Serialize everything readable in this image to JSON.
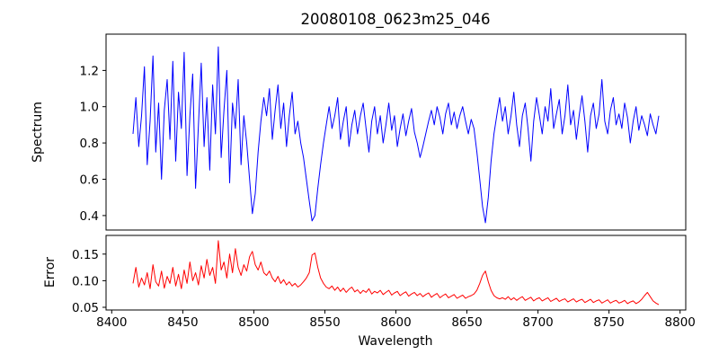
{
  "chart_data": {
    "type": "line",
    "title": "20080108_0623m25_046",
    "xlabel": "Wavelength",
    "xlim": [
      8396,
      8804
    ],
    "xticks": [
      8400,
      8450,
      8500,
      8550,
      8600,
      8650,
      8700,
      8750,
      8800
    ],
    "x_start": 8415,
    "x_step": 2,
    "grid": false,
    "legend": "none",
    "subplots": [
      {
        "name": "spectrum",
        "ylabel": "Spectrum",
        "ylim": [
          0.32,
          1.4
        ],
        "yticks": [
          0.4,
          0.6,
          0.8,
          1.0,
          1.2
        ],
        "ytick_labels": [
          "0.4",
          "0.6",
          "0.8",
          "1.0",
          "1.2"
        ],
        "line_color": "#0000ff",
        "y": [
          0.85,
          1.05,
          0.78,
          0.95,
          1.22,
          0.68,
          0.92,
          1.28,
          0.75,
          1.02,
          0.6,
          0.98,
          1.15,
          0.82,
          1.25,
          0.7,
          1.08,
          0.88,
          1.3,
          0.62,
          0.95,
          1.18,
          0.55,
          0.9,
          1.24,
          0.78,
          1.05,
          0.65,
          1.12,
          0.85,
          1.33,
          0.72,
          0.98,
          1.2,
          0.58,
          1.02,
          0.88,
          1.15,
          0.68,
          0.95,
          0.8,
          0.6,
          0.41,
          0.52,
          0.75,
          0.92,
          1.05,
          0.95,
          1.1,
          0.82,
          0.98,
          1.12,
          0.88,
          1.02,
          0.78,
          0.95,
          1.08,
          0.85,
          0.92,
          0.8,
          0.72,
          0.6,
          0.48,
          0.37,
          0.4,
          0.55,
          0.68,
          0.8,
          0.9,
          1.0,
          0.88,
          0.95,
          1.05,
          0.82,
          0.92,
          1.0,
          0.78,
          0.9,
          0.98,
          0.85,
          0.95,
          1.02,
          0.88,
          0.75,
          0.92,
          1.0,
          0.85,
          0.95,
          0.8,
          0.9,
          1.02,
          0.87,
          0.95,
          0.78,
          0.88,
          0.96,
          0.84,
          0.92,
          0.99,
          0.86,
          0.8,
          0.72,
          0.78,
          0.85,
          0.92,
          0.98,
          0.9,
          1.0,
          0.94,
          0.85,
          0.96,
          1.02,
          0.9,
          0.97,
          0.88,
          0.95,
          1.0,
          0.92,
          0.85,
          0.93,
          0.88,
          0.75,
          0.6,
          0.45,
          0.36,
          0.5,
          0.7,
          0.85,
          0.95,
          1.05,
          0.92,
          1.0,
          0.85,
          0.95,
          1.08,
          0.9,
          0.78,
          0.95,
          1.02,
          0.88,
          0.7,
          0.92,
          1.05,
          0.95,
          0.85,
          1.0,
          0.92,
          1.1,
          0.88,
          0.96,
          1.04,
          0.85,
          0.95,
          1.12,
          0.9,
          0.98,
          0.82,
          0.95,
          1.06,
          0.92,
          0.75,
          0.95,
          1.02,
          0.88,
          0.96,
          1.15,
          0.92,
          0.85,
          0.98,
          1.05,
          0.9,
          0.96,
          0.88,
          1.02,
          0.94,
          0.8,
          0.92,
          1.0,
          0.87,
          0.95,
          0.9,
          0.84,
          0.96,
          0.9,
          0.85,
          0.95
        ]
      },
      {
        "name": "error",
        "ylabel": "Error",
        "ylim": [
          0.045,
          0.185
        ],
        "yticks": [
          0.05,
          0.1,
          0.15
        ],
        "ytick_labels": [
          "0.05",
          "0.10",
          "0.15"
        ],
        "line_color": "#ff0000",
        "y": [
          0.095,
          0.125,
          0.088,
          0.105,
          0.092,
          0.115,
          0.085,
          0.13,
          0.098,
          0.09,
          0.118,
          0.086,
          0.108,
          0.095,
          0.125,
          0.09,
          0.112,
          0.085,
          0.12,
          0.095,
          0.135,
          0.1,
          0.115,
          0.092,
          0.128,
          0.105,
          0.14,
          0.11,
          0.125,
          0.095,
          0.175,
          0.12,
          0.135,
          0.105,
          0.15,
          0.115,
          0.16,
          0.125,
          0.11,
          0.13,
          0.118,
          0.145,
          0.155,
          0.13,
          0.12,
          0.135,
          0.115,
          0.11,
          0.118,
          0.105,
          0.098,
          0.108,
          0.095,
          0.102,
          0.092,
          0.098,
          0.09,
          0.095,
          0.088,
          0.092,
          0.098,
          0.105,
          0.115,
          0.148,
          0.152,
          0.125,
          0.105,
          0.095,
          0.088,
          0.085,
          0.09,
          0.082,
          0.088,
          0.08,
          0.086,
          0.078,
          0.084,
          0.088,
          0.079,
          0.083,
          0.076,
          0.082,
          0.078,
          0.085,
          0.075,
          0.08,
          0.077,
          0.082,
          0.074,
          0.078,
          0.082,
          0.073,
          0.077,
          0.08,
          0.072,
          0.076,
          0.079,
          0.071,
          0.075,
          0.078,
          0.072,
          0.076,
          0.07,
          0.074,
          0.077,
          0.069,
          0.073,
          0.076,
          0.068,
          0.072,
          0.075,
          0.068,
          0.071,
          0.074,
          0.067,
          0.07,
          0.073,
          0.067,
          0.07,
          0.072,
          0.075,
          0.082,
          0.095,
          0.11,
          0.118,
          0.098,
          0.082,
          0.072,
          0.068,
          0.066,
          0.068,
          0.065,
          0.07,
          0.064,
          0.068,
          0.063,
          0.067,
          0.07,
          0.063,
          0.066,
          0.069,
          0.062,
          0.066,
          0.068,
          0.062,
          0.065,
          0.068,
          0.061,
          0.064,
          0.067,
          0.061,
          0.064,
          0.066,
          0.06,
          0.063,
          0.066,
          0.06,
          0.063,
          0.065,
          0.059,
          0.062,
          0.065,
          0.059,
          0.062,
          0.064,
          0.058,
          0.061,
          0.064,
          0.058,
          0.061,
          0.063,
          0.058,
          0.06,
          0.063,
          0.057,
          0.06,
          0.062,
          0.057,
          0.06,
          0.065,
          0.072,
          0.078,
          0.07,
          0.062,
          0.058,
          0.055
        ]
      }
    ]
  }
}
